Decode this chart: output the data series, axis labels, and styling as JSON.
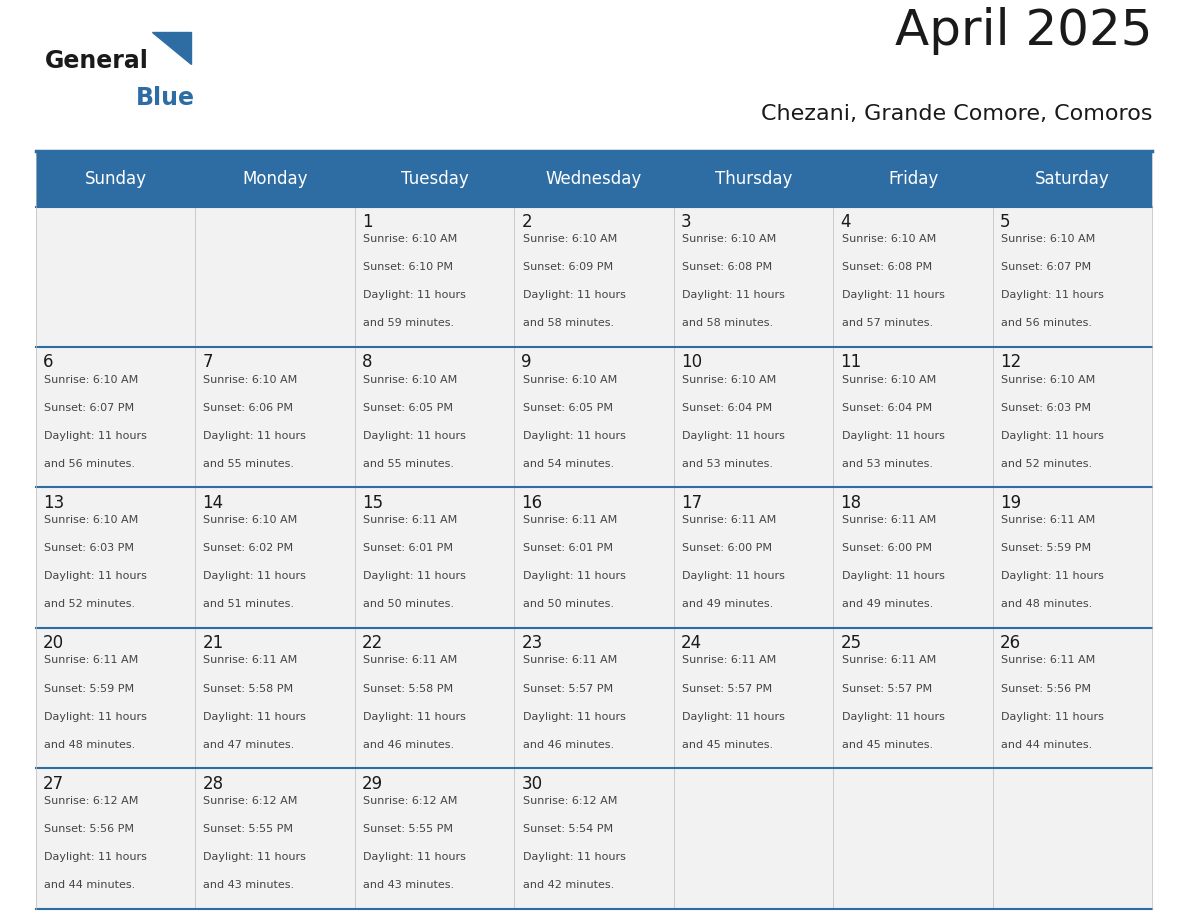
{
  "title": "April 2025",
  "subtitle": "Chezani, Grande Comore, Comoros",
  "header_bg": "#2E6DA4",
  "header_text": "#FFFFFF",
  "cell_bg": "#F2F2F2",
  "title_color": "#1A1A1A",
  "subtitle_color": "#1A1A1A",
  "days_of_week": [
    "Sunday",
    "Monday",
    "Tuesday",
    "Wednesday",
    "Thursday",
    "Friday",
    "Saturday"
  ],
  "day_number_color": "#1A1A1A",
  "cell_text_color": "#444444",
  "line_color": "#2E6DA4",
  "cell_border_color": "#BBBBBB",
  "logo_general_color": "#1A1A1A",
  "logo_blue_color": "#2E6DA4",
  "logo_triangle_color": "#2E6DA4",
  "calendar": [
    [
      {
        "day": "",
        "sunrise": "",
        "sunset": "",
        "daylight": ""
      },
      {
        "day": "",
        "sunrise": "",
        "sunset": "",
        "daylight": ""
      },
      {
        "day": "1",
        "sunrise": "6:10 AM",
        "sunset": "6:10 PM",
        "daylight": "11 hours and 59 minutes."
      },
      {
        "day": "2",
        "sunrise": "6:10 AM",
        "sunset": "6:09 PM",
        "daylight": "11 hours and 58 minutes."
      },
      {
        "day": "3",
        "sunrise": "6:10 AM",
        "sunset": "6:08 PM",
        "daylight": "11 hours and 58 minutes."
      },
      {
        "day": "4",
        "sunrise": "6:10 AM",
        "sunset": "6:08 PM",
        "daylight": "11 hours and 57 minutes."
      },
      {
        "day": "5",
        "sunrise": "6:10 AM",
        "sunset": "6:07 PM",
        "daylight": "11 hours and 56 minutes."
      }
    ],
    [
      {
        "day": "6",
        "sunrise": "6:10 AM",
        "sunset": "6:07 PM",
        "daylight": "11 hours and 56 minutes."
      },
      {
        "day": "7",
        "sunrise": "6:10 AM",
        "sunset": "6:06 PM",
        "daylight": "11 hours and 55 minutes."
      },
      {
        "day": "8",
        "sunrise": "6:10 AM",
        "sunset": "6:05 PM",
        "daylight": "11 hours and 55 minutes."
      },
      {
        "day": "9",
        "sunrise": "6:10 AM",
        "sunset": "6:05 PM",
        "daylight": "11 hours and 54 minutes."
      },
      {
        "day": "10",
        "sunrise": "6:10 AM",
        "sunset": "6:04 PM",
        "daylight": "11 hours and 53 minutes."
      },
      {
        "day": "11",
        "sunrise": "6:10 AM",
        "sunset": "6:04 PM",
        "daylight": "11 hours and 53 minutes."
      },
      {
        "day": "12",
        "sunrise": "6:10 AM",
        "sunset": "6:03 PM",
        "daylight": "11 hours and 52 minutes."
      }
    ],
    [
      {
        "day": "13",
        "sunrise": "6:10 AM",
        "sunset": "6:03 PM",
        "daylight": "11 hours and 52 minutes."
      },
      {
        "day": "14",
        "sunrise": "6:10 AM",
        "sunset": "6:02 PM",
        "daylight": "11 hours and 51 minutes."
      },
      {
        "day": "15",
        "sunrise": "6:11 AM",
        "sunset": "6:01 PM",
        "daylight": "11 hours and 50 minutes."
      },
      {
        "day": "16",
        "sunrise": "6:11 AM",
        "sunset": "6:01 PM",
        "daylight": "11 hours and 50 minutes."
      },
      {
        "day": "17",
        "sunrise": "6:11 AM",
        "sunset": "6:00 PM",
        "daylight": "11 hours and 49 minutes."
      },
      {
        "day": "18",
        "sunrise": "6:11 AM",
        "sunset": "6:00 PM",
        "daylight": "11 hours and 49 minutes."
      },
      {
        "day": "19",
        "sunrise": "6:11 AM",
        "sunset": "5:59 PM",
        "daylight": "11 hours and 48 minutes."
      }
    ],
    [
      {
        "day": "20",
        "sunrise": "6:11 AM",
        "sunset": "5:59 PM",
        "daylight": "11 hours and 48 minutes."
      },
      {
        "day": "21",
        "sunrise": "6:11 AM",
        "sunset": "5:58 PM",
        "daylight": "11 hours and 47 minutes."
      },
      {
        "day": "22",
        "sunrise": "6:11 AM",
        "sunset": "5:58 PM",
        "daylight": "11 hours and 46 minutes."
      },
      {
        "day": "23",
        "sunrise": "6:11 AM",
        "sunset": "5:57 PM",
        "daylight": "11 hours and 46 minutes."
      },
      {
        "day": "24",
        "sunrise": "6:11 AM",
        "sunset": "5:57 PM",
        "daylight": "11 hours and 45 minutes."
      },
      {
        "day": "25",
        "sunrise": "6:11 AM",
        "sunset": "5:57 PM",
        "daylight": "11 hours and 45 minutes."
      },
      {
        "day": "26",
        "sunrise": "6:11 AM",
        "sunset": "5:56 PM",
        "daylight": "11 hours and 44 minutes."
      }
    ],
    [
      {
        "day": "27",
        "sunrise": "6:12 AM",
        "sunset": "5:56 PM",
        "daylight": "11 hours and 44 minutes."
      },
      {
        "day": "28",
        "sunrise": "6:12 AM",
        "sunset": "5:55 PM",
        "daylight": "11 hours and 43 minutes."
      },
      {
        "day": "29",
        "sunrise": "6:12 AM",
        "sunset": "5:55 PM",
        "daylight": "11 hours and 43 minutes."
      },
      {
        "day": "30",
        "sunrise": "6:12 AM",
        "sunset": "5:54 PM",
        "daylight": "11 hours and 42 minutes."
      },
      {
        "day": "",
        "sunrise": "",
        "sunset": "",
        "daylight": ""
      },
      {
        "day": "",
        "sunrise": "",
        "sunset": "",
        "daylight": ""
      },
      {
        "day": "",
        "sunrise": "",
        "sunset": "",
        "daylight": ""
      }
    ]
  ]
}
